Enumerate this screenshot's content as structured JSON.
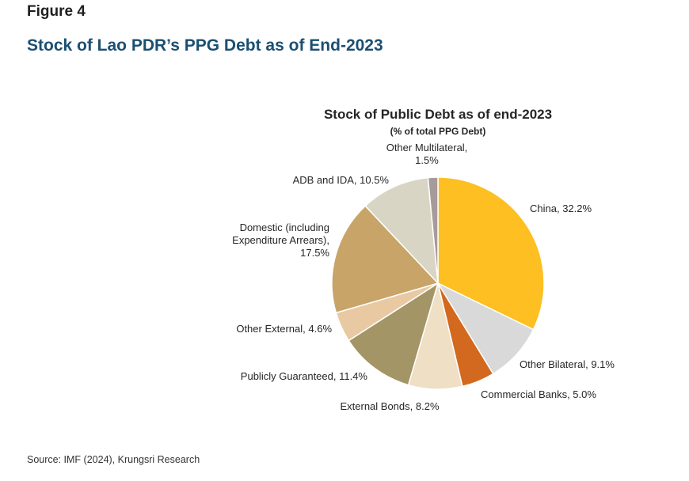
{
  "figure_label": "Figure 4",
  "figure_title": "Stock of Lao PDR’s PPG Debt as of End-2023",
  "source": "Source: IMF (2024), Krungsri Research",
  "chart_data": {
    "type": "pie",
    "title": "Stock of Public Debt as of end-2023",
    "subtitle": "(% of total PPG Debt)",
    "start_angle_deg": 0,
    "direction": "clockwise",
    "slices": [
      {
        "name": "China",
        "value": 32.2,
        "color": "#FDBF21",
        "label_lines": [
          "China, 32.2%"
        ]
      },
      {
        "name": "Other Bilateral",
        "value": 9.1,
        "color": "#D9D9D9",
        "label_lines": [
          "Other Bilateral, 9.1%"
        ]
      },
      {
        "name": "Commercial Banks",
        "value": 5.0,
        "color": "#D2691E",
        "label_lines": [
          "Commercial Banks, 5.0%"
        ]
      },
      {
        "name": "External Bonds",
        "value": 8.2,
        "color": "#EEDFC5",
        "label_lines": [
          "External Bonds, 8.2%"
        ]
      },
      {
        "name": "Publicly Guaranteed",
        "value": 11.4,
        "color": "#A39565",
        "label_lines": [
          "Publicly Guaranteed, 11.4%"
        ]
      },
      {
        "name": "Other External",
        "value": 4.6,
        "color": "#E8C9A2",
        "label_lines": [
          "Other External, 4.6%"
        ]
      },
      {
        "name": "Domestic (including Expenditure Arrears)",
        "value": 17.5,
        "color": "#C8A468",
        "label_lines": [
          "Domestic (including",
          "Expenditure Arrears),",
          "17.5%"
        ]
      },
      {
        "name": "ADB and IDA",
        "value": 10.5,
        "color": "#D9D5C4",
        "label_lines": [
          "ADB and IDA, 10.5%"
        ]
      },
      {
        "name": "Other Multilateral",
        "value": 1.5,
        "color": "#A69A9A",
        "label_lines": [
          "Other Multilateral,",
          "1.5%"
        ]
      }
    ]
  }
}
